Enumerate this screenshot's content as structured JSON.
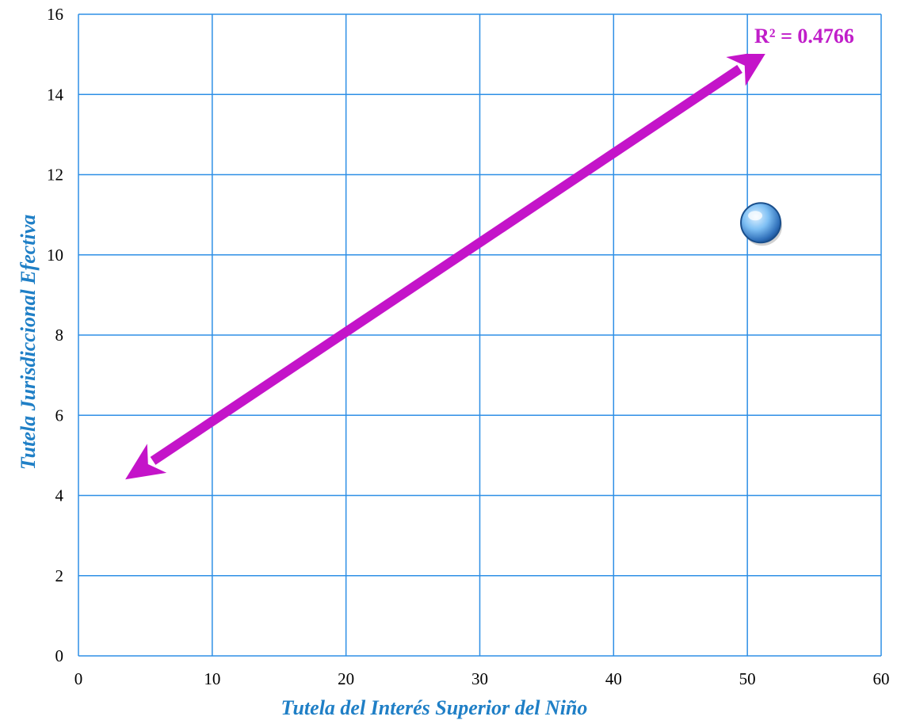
{
  "chart_data": {
    "type": "scatter",
    "title": "",
    "xlabel": "Tutela del Interés Superior del Niño",
    "ylabel": "Tutela Jurisdiccional Efectiva",
    "xlim": [
      0,
      60
    ],
    "ylim": [
      0,
      16
    ],
    "x_ticks": [
      "0",
      "10",
      "20",
      "30",
      "40",
      "50",
      "60"
    ],
    "y_ticks": [
      "0",
      "2",
      "4",
      "6",
      "8",
      "10",
      "12",
      "14",
      "16"
    ],
    "grid": true,
    "series": [
      {
        "points": [
          {
            "x": 51,
            "y": 10.8
          }
        ]
      }
    ],
    "trendline": {
      "type": "linear",
      "from": {
        "x": 3.5,
        "y": 4.4
      },
      "to": {
        "x": 51.5,
        "y": 15.1
      },
      "arrowheads": "both"
    },
    "annotation": "R² = 0.4766",
    "colors": {
      "grid": "#2e8fe6",
      "point": "#3f8fe0",
      "trendline": "#c414c9",
      "annotation": "#c01ec9",
      "axis_title": "#1f7fc6"
    }
  }
}
